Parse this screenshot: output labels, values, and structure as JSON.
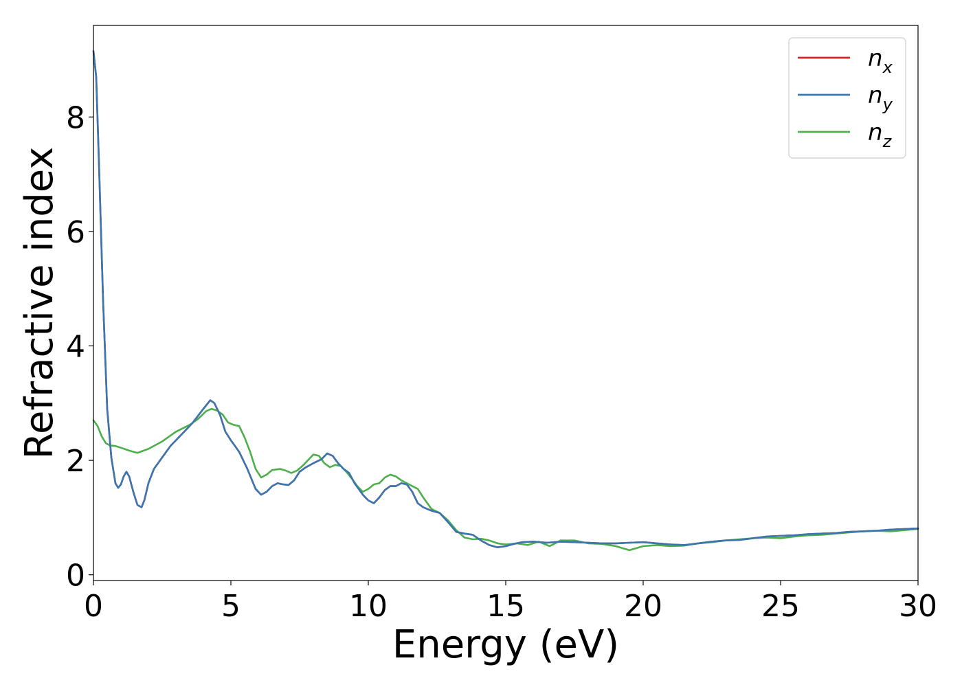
{
  "chart_data": {
    "type": "line",
    "title": "",
    "xlabel": "Energy (eV)",
    "ylabel": "Refractive index",
    "xlim": [
      0,
      30
    ],
    "ylim": [
      -0.1,
      9.6
    ],
    "xticks": [
      0,
      5,
      10,
      15,
      20,
      25,
      30
    ],
    "yticks": [
      0,
      2,
      4,
      6,
      8
    ],
    "grid": false,
    "legend_position": "top-right",
    "series": [
      {
        "name": "n_x",
        "legend_main": "n",
        "legend_sub": "x",
        "color": "#d62728",
        "x": [
          0,
          0.1,
          0.2,
          0.35,
          0.5,
          0.65,
          0.8,
          0.9,
          1.0,
          1.1,
          1.2,
          1.3,
          1.45,
          1.6,
          1.75,
          1.85,
          2.0,
          2.2,
          2.5,
          2.8,
          3.2,
          3.6,
          4.0,
          4.25,
          4.4,
          4.6,
          4.8,
          5.0,
          5.3,
          5.6,
          5.9,
          6.1,
          6.3,
          6.5,
          6.7,
          6.9,
          7.1,
          7.3,
          7.5,
          7.7,
          8.0,
          8.3,
          8.5,
          8.7,
          8.9,
          9.1,
          9.3,
          9.5,
          9.8,
          10.0,
          10.2,
          10.4,
          10.6,
          10.8,
          11.0,
          11.2,
          11.4,
          11.6,
          11.8,
          12.0,
          12.3,
          12.6,
          12.9,
          13.2,
          13.5,
          13.8,
          14.1,
          14.4,
          14.7,
          15.0,
          15.3,
          15.6,
          16.0,
          16.5,
          17.0,
          17.5,
          18.0,
          18.5,
          19.0,
          19.5,
          20.0,
          20.5,
          21.0,
          21.5,
          22.0,
          22.5,
          23.0,
          23.5,
          24.0,
          24.5,
          25.0,
          25.5,
          26.0,
          26.5,
          27.0,
          27.5,
          28.0,
          28.5,
          29.0,
          29.5,
          30.0
        ],
        "y": [
          9.15,
          8.7,
          7.2,
          4.8,
          2.9,
          2.05,
          1.6,
          1.52,
          1.58,
          1.72,
          1.8,
          1.72,
          1.45,
          1.22,
          1.18,
          1.3,
          1.6,
          1.85,
          2.05,
          2.25,
          2.45,
          2.65,
          2.9,
          3.05,
          3.0,
          2.8,
          2.5,
          2.35,
          2.15,
          1.85,
          1.5,
          1.4,
          1.45,
          1.55,
          1.6,
          1.58,
          1.57,
          1.65,
          1.8,
          1.87,
          1.95,
          2.02,
          2.12,
          2.08,
          1.95,
          1.85,
          1.78,
          1.6,
          1.4,
          1.3,
          1.25,
          1.35,
          1.48,
          1.55,
          1.55,
          1.6,
          1.58,
          1.45,
          1.25,
          1.18,
          1.12,
          1.08,
          0.92,
          0.75,
          0.72,
          0.7,
          0.6,
          0.52,
          0.48,
          0.5,
          0.54,
          0.57,
          0.58,
          0.56,
          0.58,
          0.57,
          0.56,
          0.55,
          0.55,
          0.56,
          0.57,
          0.55,
          0.53,
          0.52,
          0.55,
          0.58,
          0.6,
          0.61,
          0.64,
          0.67,
          0.68,
          0.69,
          0.71,
          0.72,
          0.73,
          0.75,
          0.76,
          0.77,
          0.79,
          0.8,
          0.81
        ]
      },
      {
        "name": "n_y",
        "legend_main": "n",
        "legend_sub": "y",
        "color": "#3a76b0",
        "x": [
          0,
          0.1,
          0.2,
          0.35,
          0.5,
          0.65,
          0.8,
          0.9,
          1.0,
          1.1,
          1.2,
          1.3,
          1.45,
          1.6,
          1.75,
          1.85,
          2.0,
          2.2,
          2.5,
          2.8,
          3.2,
          3.6,
          4.0,
          4.25,
          4.4,
          4.6,
          4.8,
          5.0,
          5.3,
          5.6,
          5.9,
          6.1,
          6.3,
          6.5,
          6.7,
          6.9,
          7.1,
          7.3,
          7.5,
          7.7,
          8.0,
          8.3,
          8.5,
          8.7,
          8.9,
          9.1,
          9.3,
          9.5,
          9.8,
          10.0,
          10.2,
          10.4,
          10.6,
          10.8,
          11.0,
          11.2,
          11.4,
          11.6,
          11.8,
          12.0,
          12.3,
          12.6,
          12.9,
          13.2,
          13.5,
          13.8,
          14.1,
          14.4,
          14.7,
          15.0,
          15.3,
          15.6,
          16.0,
          16.5,
          17.0,
          17.5,
          18.0,
          18.5,
          19.0,
          19.5,
          20.0,
          20.5,
          21.0,
          21.5,
          22.0,
          22.5,
          23.0,
          23.5,
          24.0,
          24.5,
          25.0,
          25.5,
          26.0,
          26.5,
          27.0,
          27.5,
          28.0,
          28.5,
          29.0,
          29.5,
          30.0
        ],
        "y": [
          9.15,
          8.7,
          7.2,
          4.8,
          2.9,
          2.05,
          1.6,
          1.52,
          1.58,
          1.72,
          1.8,
          1.72,
          1.45,
          1.22,
          1.18,
          1.3,
          1.6,
          1.85,
          2.05,
          2.25,
          2.45,
          2.65,
          2.9,
          3.05,
          3.0,
          2.8,
          2.5,
          2.35,
          2.15,
          1.85,
          1.5,
          1.4,
          1.45,
          1.55,
          1.6,
          1.58,
          1.57,
          1.65,
          1.8,
          1.87,
          1.95,
          2.02,
          2.12,
          2.08,
          1.95,
          1.85,
          1.78,
          1.6,
          1.4,
          1.3,
          1.25,
          1.35,
          1.48,
          1.55,
          1.55,
          1.6,
          1.58,
          1.45,
          1.25,
          1.18,
          1.12,
          1.08,
          0.92,
          0.75,
          0.72,
          0.7,
          0.6,
          0.52,
          0.48,
          0.5,
          0.54,
          0.57,
          0.58,
          0.56,
          0.58,
          0.57,
          0.56,
          0.55,
          0.55,
          0.56,
          0.57,
          0.55,
          0.53,
          0.52,
          0.55,
          0.58,
          0.6,
          0.61,
          0.64,
          0.67,
          0.68,
          0.69,
          0.71,
          0.72,
          0.73,
          0.75,
          0.76,
          0.77,
          0.79,
          0.8,
          0.81
        ]
      },
      {
        "name": "n_z",
        "legend_main": "n",
        "legend_sub": "z",
        "color": "#4daf4a",
        "x": [
          0,
          0.15,
          0.3,
          0.45,
          0.6,
          0.8,
          1.0,
          1.3,
          1.6,
          2.0,
          2.5,
          3.0,
          3.5,
          3.8,
          4.1,
          4.3,
          4.5,
          4.7,
          4.9,
          5.1,
          5.3,
          5.5,
          5.7,
          5.9,
          6.1,
          6.3,
          6.5,
          6.8,
          7.0,
          7.2,
          7.4,
          7.6,
          7.8,
          8.0,
          8.2,
          8.4,
          8.6,
          8.8,
          9.0,
          9.2,
          9.4,
          9.6,
          9.8,
          10.0,
          10.2,
          10.4,
          10.6,
          10.8,
          11.0,
          11.2,
          11.4,
          11.6,
          11.8,
          12.0,
          12.3,
          12.6,
          12.9,
          13.2,
          13.5,
          13.8,
          14.1,
          14.4,
          14.7,
          15.0,
          15.4,
          15.8,
          16.2,
          16.6,
          17.0,
          17.5,
          18.0,
          18.5,
          19.0,
          19.5,
          20.0,
          20.5,
          21.0,
          21.5,
          22.0,
          22.5,
          23.0,
          23.5,
          24.0,
          24.5,
          25.0,
          25.5,
          26.0,
          26.5,
          27.0,
          27.5,
          28.0,
          28.5,
          29.0,
          29.5,
          30.0
        ],
        "y": [
          2.7,
          2.6,
          2.42,
          2.3,
          2.26,
          2.25,
          2.22,
          2.17,
          2.13,
          2.2,
          2.33,
          2.5,
          2.62,
          2.72,
          2.86,
          2.9,
          2.87,
          2.8,
          2.66,
          2.62,
          2.6,
          2.4,
          2.15,
          1.85,
          1.7,
          1.75,
          1.83,
          1.85,
          1.82,
          1.78,
          1.82,
          1.9,
          2.0,
          2.1,
          2.08,
          1.95,
          1.88,
          1.92,
          1.9,
          1.8,
          1.68,
          1.55,
          1.45,
          1.5,
          1.58,
          1.6,
          1.7,
          1.75,
          1.72,
          1.65,
          1.6,
          1.55,
          1.5,
          1.35,
          1.15,
          1.08,
          0.95,
          0.78,
          0.65,
          0.62,
          0.63,
          0.6,
          0.55,
          0.53,
          0.55,
          0.52,
          0.58,
          0.5,
          0.6,
          0.6,
          0.55,
          0.54,
          0.5,
          0.43,
          0.5,
          0.52,
          0.5,
          0.51,
          0.55,
          0.57,
          0.6,
          0.62,
          0.64,
          0.65,
          0.64,
          0.67,
          0.69,
          0.7,
          0.72,
          0.74,
          0.76,
          0.77,
          0.76,
          0.78,
          0.8
        ]
      }
    ]
  }
}
